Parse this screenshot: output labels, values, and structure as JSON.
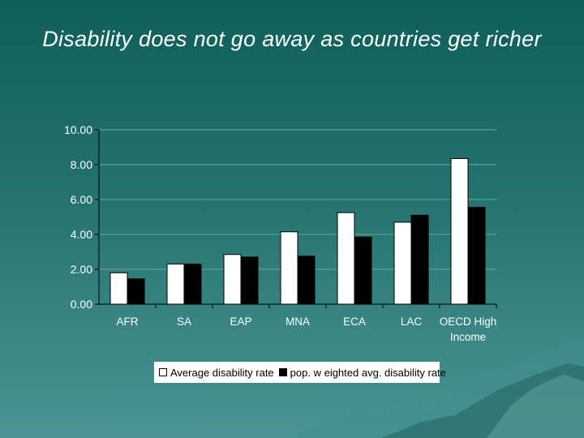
{
  "title": "Disability does not go away as countries get richer",
  "colors": {
    "background_top": "#0e5e5a",
    "background_bottom": "#4a9593",
    "series_average": "#ffffff",
    "series_weighted": "#000000",
    "gridline": "#6aa7a0",
    "tick_text": "#ffffff"
  },
  "legend": {
    "items": [
      {
        "label": "Average disability rate",
        "color": "#ffffff"
      },
      {
        "label": "pop. w eighted avg. disability rate",
        "color": "#000000"
      }
    ]
  },
  "chart_data": {
    "type": "bar",
    "title": "",
    "xlabel": "",
    "ylabel": "",
    "categories": [
      "AFR",
      "SA",
      "EAP",
      "MNA",
      "ECA",
      "LAC",
      "OECD High Income"
    ],
    "category_lines": [
      [
        "AFR"
      ],
      [
        "SA"
      ],
      [
        "EAP"
      ],
      [
        "MNA"
      ],
      [
        "ECA"
      ],
      [
        "LAC"
      ],
      [
        "OECD High",
        "Income"
      ]
    ],
    "series": [
      {
        "name": "Average disability rate",
        "color": "#ffffff",
        "values": [
          1.8,
          2.3,
          2.85,
          4.15,
          5.25,
          4.7,
          8.35
        ]
      },
      {
        "name": "pop. w eighted avg. disability rate",
        "color": "#000000",
        "values": [
          1.45,
          2.3,
          2.7,
          2.75,
          3.85,
          5.1,
          5.55
        ]
      }
    ],
    "ylim": [
      0,
      10
    ],
    "yticks": [
      "0.00",
      "2.00",
      "4.00",
      "6.00",
      "8.00",
      "10.00"
    ],
    "grid": true,
    "legend_position": "bottom"
  }
}
